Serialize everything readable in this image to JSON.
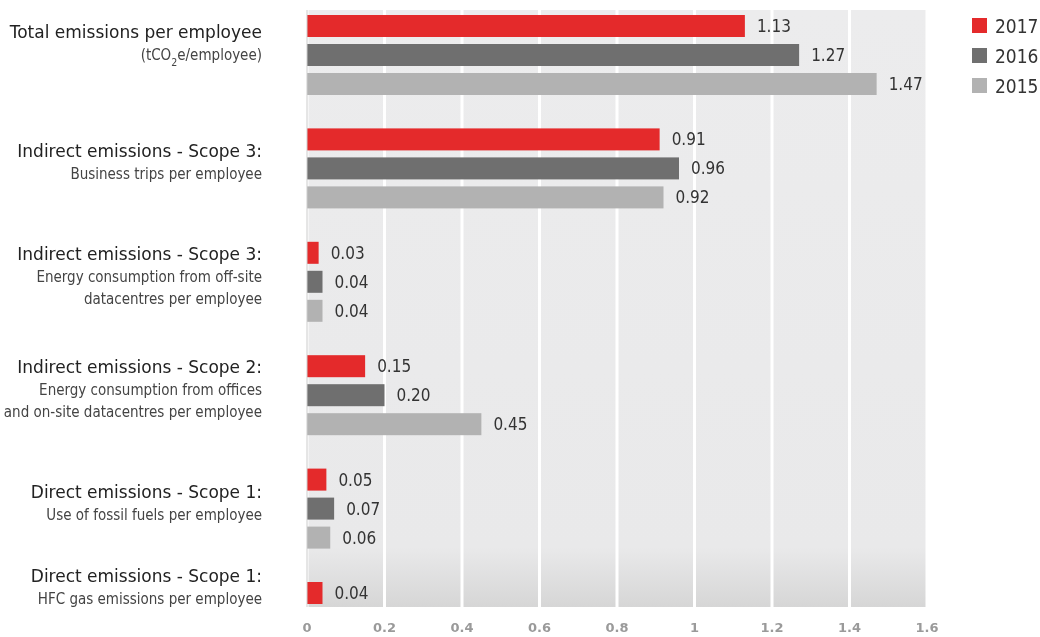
{
  "chart_data": {
    "type": "bar",
    "orientation": "horizontal",
    "categories": [
      "Total emissions per employee\n(tCO$_{2}$e/employee)",
      "Indirect emissions - Scope 3:\nBusiness trips per employee",
      "Indirect emissions - Scope 3:\nEnergy consumption from off-site\ndatacentres per employee",
      "Indirect emissions - Scope 2:\nEnergy consumption from offices\nand on-site datacentres per employee",
      "Direct emissions - Scope 1:\nUse of fossil fuels per employee",
      "Direct emissions - Scope 1:\nHFC gas emissions per employee"
    ],
    "series": [
      {
        "name": "2017",
        "color": "#e42a2b",
        "values": [
          1.13,
          0.91,
          0.03,
          0.15,
          0.05,
          0.04
        ],
        "value_labels": [
          "1.13",
          "0.91",
          "0.03",
          "0.15",
          "0.05",
          "0.04"
        ]
      },
      {
        "name": "2016",
        "color": "#6f6f6f",
        "values": [
          1.27,
          0.96,
          0.04,
          0.2,
          0.07,
          null
        ],
        "value_labels": [
          "1.27",
          "0.96",
          "0.04",
          "0.20",
          "0.07",
          null
        ]
      },
      {
        "name": "2015",
        "color": "#b2b2b2",
        "values": [
          1.47,
          0.92,
          0.04,
          0.45,
          0.06,
          null
        ],
        "value_labels": [
          "1.47",
          "0.92",
          "0.04",
          "0.45",
          "0.06",
          null
        ]
      }
    ],
    "xlim": [
      0,
      1.6
    ],
    "xticks": [
      0,
      0.2,
      0.4,
      0.6,
      0.8,
      1,
      1.2,
      1.4,
      1.6
    ],
    "grid": "x",
    "legend": "top right"
  }
}
